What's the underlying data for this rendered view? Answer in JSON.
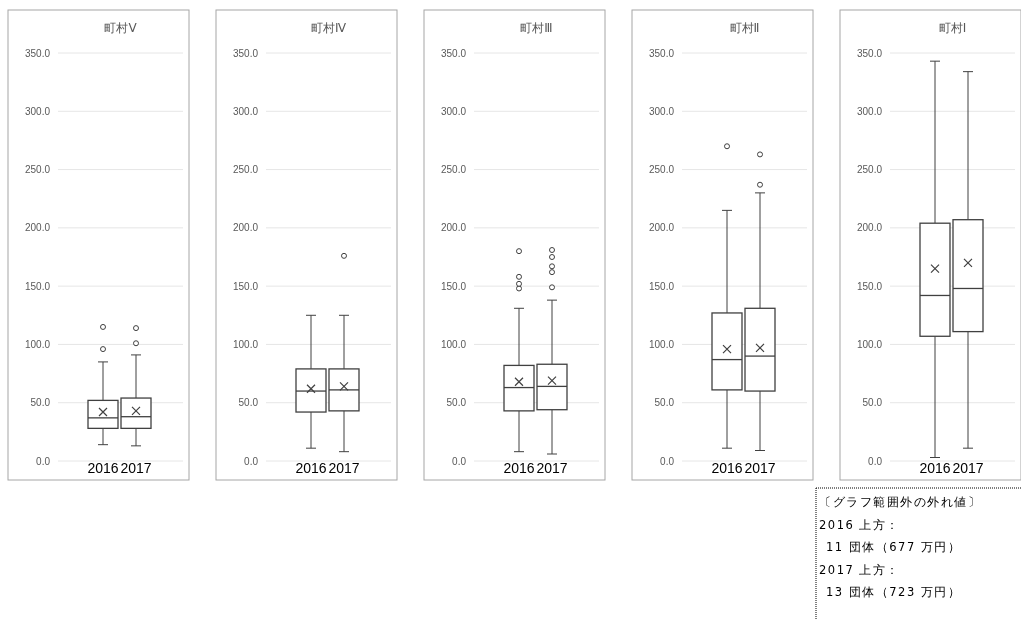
{
  "chart_data": [
    {
      "type": "box",
      "title": "町村Ⅴ",
      "categories": [
        "2016",
        "2017"
      ],
      "ylim": [
        0,
        350
      ],
      "yticks": [
        {
          "value": 0,
          "label": "0.0"
        },
        {
          "value": 50,
          "label": "50.0"
        },
        {
          "value": 100,
          "label": "100.0"
        },
        {
          "value": 150,
          "label": "150.0"
        },
        {
          "value": 200,
          "label": "200.0"
        },
        {
          "value": 250,
          "label": "250.0"
        },
        {
          "value": 300,
          "label": "300.0"
        },
        {
          "value": 350,
          "label": "350.0"
        }
      ],
      "grid": "y",
      "boxes": [
        {
          "low": 14,
          "q1": 28,
          "median": 37,
          "q3": 52,
          "high": 85,
          "mean": 42,
          "outliers": [
            96,
            115
          ]
        },
        {
          "low": 13,
          "q1": 28,
          "median": 38,
          "q3": 54,
          "high": 91,
          "mean": 43,
          "outliers": [
            101,
            114
          ]
        }
      ]
    },
    {
      "type": "box",
      "title": "町村Ⅳ",
      "categories": [
        "2016",
        "2017"
      ],
      "ylim": [
        0,
        350
      ],
      "yticks": [
        {
          "value": 0,
          "label": "0.0"
        },
        {
          "value": 50,
          "label": "50.0"
        },
        {
          "value": 100,
          "label": "100.0"
        },
        {
          "value": 150,
          "label": "150.0"
        },
        {
          "value": 200,
          "label": "200.0"
        },
        {
          "value": 250,
          "label": "250.0"
        },
        {
          "value": 300,
          "label": "300.0"
        },
        {
          "value": 350,
          "label": "350.0"
        }
      ],
      "grid": "y",
      "boxes": [
        {
          "low": 11,
          "q1": 42,
          "median": 60,
          "q3": 79,
          "high": 125,
          "mean": 62
        },
        {
          "low": 8,
          "q1": 43,
          "median": 61,
          "q3": 79,
          "high": 125,
          "mean": 64,
          "outliers": [
            176
          ]
        }
      ]
    },
    {
      "type": "box",
      "title": "町村Ⅲ",
      "categories": [
        "2016",
        "2017"
      ],
      "ylim": [
        0,
        350
      ],
      "yticks": [
        {
          "value": 0,
          "label": "0.0"
        },
        {
          "value": 50,
          "label": "50.0"
        },
        {
          "value": 100,
          "label": "100.0"
        },
        {
          "value": 150,
          "label": "150.0"
        },
        {
          "value": 200,
          "label": "200.0"
        },
        {
          "value": 250,
          "label": "250.0"
        },
        {
          "value": 300,
          "label": "300.0"
        },
        {
          "value": 350,
          "label": "350.0"
        }
      ],
      "grid": "y",
      "boxes": [
        {
          "low": 8,
          "q1": 43,
          "median": 63,
          "q3": 82,
          "high": 131,
          "mean": 68,
          "outliers": [
            148,
            152,
            158,
            180
          ]
        },
        {
          "low": 6,
          "q1": 44,
          "median": 64,
          "q3": 83,
          "high": 138,
          "mean": 69,
          "outliers": [
            149,
            162,
            167,
            175,
            181
          ]
        }
      ]
    },
    {
      "type": "box",
      "title": "町村Ⅱ",
      "categories": [
        "2016",
        "2017"
      ],
      "ylim": [
        0,
        350
      ],
      "yticks": [
        {
          "value": 0,
          "label": "0.0"
        },
        {
          "value": 50,
          "label": "50.0"
        },
        {
          "value": 100,
          "label": "100.0"
        },
        {
          "value": 150,
          "label": "150.0"
        },
        {
          "value": 200,
          "label": "200.0"
        },
        {
          "value": 250,
          "label": "250.0"
        },
        {
          "value": 300,
          "label": "300.0"
        },
        {
          "value": 350,
          "label": "350.0"
        }
      ],
      "grid": "y",
      "boxes": [
        {
          "low": 11,
          "q1": 61,
          "median": 87,
          "q3": 127,
          "high": 215,
          "mean": 96,
          "outliers": [
            270
          ]
        },
        {
          "low": 9,
          "q1": 60,
          "median": 90,
          "q3": 131,
          "high": 230,
          "mean": 97,
          "outliers": [
            237,
            263
          ]
        }
      ]
    },
    {
      "type": "box",
      "title": "町村Ⅰ",
      "categories": [
        "2016",
        "2017"
      ],
      "ylim": [
        0,
        350
      ],
      "yticks": [
        {
          "value": 0,
          "label": "0.0"
        },
        {
          "value": 50,
          "label": "50.0"
        },
        {
          "value": 100,
          "label": "100.0"
        },
        {
          "value": 150,
          "label": "150.0"
        },
        {
          "value": 200,
          "label": "200.0"
        },
        {
          "value": 250,
          "label": "250.0"
        },
        {
          "value": 300,
          "label": "300.0"
        },
        {
          "value": 350,
          "label": "350.0"
        }
      ],
      "grid": "y",
      "boxes": [
        {
          "low": 3,
          "q1": 107,
          "median": 142,
          "q3": 204,
          "high": 343,
          "mean": 165
        },
        {
          "low": 11,
          "q1": 111,
          "median": 148,
          "q3": 207,
          "high": 334,
          "mean": 170
        }
      ],
      "annotations": [
        "〔グラフ範囲外の外れ値〕",
        "2016 上方：",
        "11 団体（677 万円）",
        "2017 上方：",
        "13 団体（723 万円）"
      ]
    }
  ]
}
